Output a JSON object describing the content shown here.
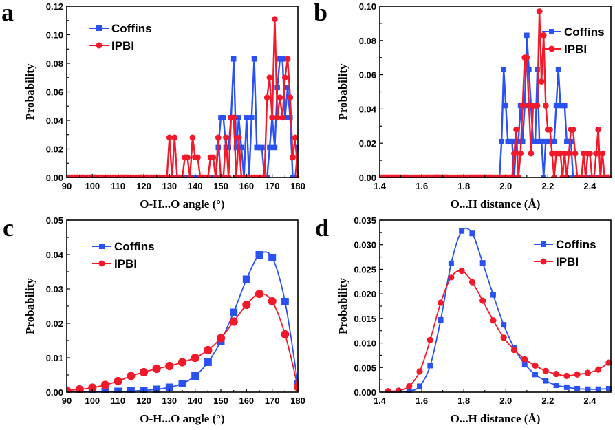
{
  "figure": {
    "panel_letters": [
      "a",
      "b",
      "c",
      "d"
    ]
  },
  "colors": {
    "coffins": "#2a52f2",
    "ipbi": "#f21a2a"
  },
  "chart_data": [
    {
      "id": "a",
      "type": "line",
      "title": "",
      "xlabel": "O-H...O angle (°)",
      "ylabel": "Probability",
      "xlim": [
        90,
        180
      ],
      "ylim": [
        0,
        0.12
      ],
      "xticks": [
        90,
        100,
        110,
        120,
        130,
        140,
        150,
        160,
        170,
        180
      ],
      "xtick_labels": [
        "90",
        "100",
        "110",
        "120",
        "130",
        "140",
        "150",
        "160",
        "170",
        "180"
      ],
      "yticks": [
        0,
        0.02,
        0.04,
        0.06,
        0.08,
        0.1,
        0.12
      ],
      "ytick_labels": [
        "0.00",
        "0.02",
        "0.04",
        "0.06",
        "0.08",
        "0.10",
        "0.12"
      ],
      "legend": {
        "placement": "top-left",
        "entries": [
          "Coffins",
          "IPBI"
        ]
      },
      "grid": false,
      "series": [
        {
          "name": "Coffins",
          "marker": "square",
          "color_key": "coffins",
          "x_start": 90,
          "x_step": 1,
          "values": [
            0,
            0,
            0,
            0,
            0,
            0,
            0,
            0,
            0,
            0,
            0,
            0,
            0,
            0,
            0,
            0,
            0,
            0,
            0,
            0,
            0,
            0,
            0,
            0,
            0,
            0,
            0,
            0,
            0,
            0,
            0,
            0,
            0,
            0,
            0,
            0,
            0,
            0,
            0,
            0,
            0,
            0,
            0,
            0,
            0,
            0,
            0,
            0,
            0,
            0,
            0,
            0,
            0,
            0,
            0,
            0,
            0,
            0,
            0,
            0.021,
            0.042,
            0.042,
            0.021,
            0.021,
            0.042,
            0.083,
            0.021,
            0.042,
            0.021,
            0,
            0.042,
            0,
            0.042,
            0.083,
            0.021,
            0.021,
            0.021,
            0,
            0,
            0.021,
            0.042,
            0.021,
            0.063,
            0.083,
            0.083,
            0.042,
            0.063,
            0.042,
            0,
            0,
            0.021
          ]
        },
        {
          "name": "IPBI",
          "marker": "circle",
          "color_key": "ipbi",
          "x_start": 90,
          "x_step": 1,
          "values": [
            0,
            0,
            0,
            0,
            0,
            0,
            0,
            0,
            0,
            0,
            0,
            0,
            0,
            0,
            0,
            0,
            0,
            0,
            0,
            0,
            0,
            0,
            0,
            0,
            0,
            0,
            0,
            0,
            0,
            0,
            0,
            0,
            0,
            0,
            0,
            0,
            0,
            0,
            0,
            0,
            0.028,
            0,
            0.028,
            0,
            0,
            0,
            0.014,
            0.014,
            0,
            0.028,
            0.014,
            0.014,
            0,
            0,
            0,
            0,
            0.014,
            0.014,
            0,
            0.028,
            0,
            0,
            0.028,
            0,
            0.042,
            0.042,
            0,
            0.028,
            0,
            0,
            0,
            0,
            0,
            0,
            0,
            0,
            0,
            0,
            0.056,
            0.07,
            0.042,
            0.111,
            0.042,
            0.056,
            0.042,
            0.07,
            0.083,
            0.056,
            0.014,
            0.028,
            0
          ]
        }
      ]
    },
    {
      "id": "b",
      "type": "line",
      "title": "",
      "xlabel": "O...H distance  (Å)",
      "ylabel": "Probability",
      "xlim": [
        1.4,
        2.5
      ],
      "ylim": [
        0,
        0.1
      ],
      "xticks": [
        1.4,
        1.6,
        1.8,
        2.0,
        2.2,
        2.4
      ],
      "xtick_labels": [
        "1.4",
        "1.6",
        "1.8",
        "2.0",
        "2.2",
        "2.4"
      ],
      "yticks": [
        0,
        0.02,
        0.04,
        0.06,
        0.08,
        0.1
      ],
      "ytick_labels": [
        "0.00",
        "0.02",
        "0.04",
        "0.06",
        "0.08",
        "0.10"
      ],
      "legend": {
        "placement": "top-right",
        "entries": [
          "Coffins",
          "IPBI"
        ]
      },
      "grid": false,
      "series": [
        {
          "name": "Coffins",
          "marker": "square",
          "color_key": "coffins",
          "x_start": 1.4,
          "x_step": 0.01,
          "values": [
            0,
            0,
            0,
            0,
            0,
            0,
            0,
            0,
            0,
            0,
            0,
            0,
            0,
            0,
            0,
            0,
            0,
            0,
            0,
            0,
            0,
            0,
            0,
            0,
            0,
            0,
            0,
            0,
            0,
            0,
            0,
            0,
            0,
            0,
            0,
            0,
            0,
            0,
            0,
            0,
            0,
            0,
            0,
            0,
            0,
            0,
            0,
            0,
            0,
            0,
            0,
            0,
            0,
            0,
            0,
            0,
            0,
            0,
            0.021,
            0.063,
            0.042,
            0.021,
            0.021,
            0.021,
            0,
            0.021,
            0.021,
            0.042,
            0.021,
            0.042,
            0.083,
            0.063,
            0.042,
            0.021,
            0.021,
            0.063,
            0.021,
            0.021,
            0,
            0.021,
            0.021,
            0.021,
            0.021,
            0.021,
            0.042,
            0.063,
            0.042,
            0.042,
            0.042,
            0.021,
            0.021,
            0.021,
            0,
            0,
            0,
            0,
            0,
            0,
            0,
            0,
            0,
            0,
            0,
            0,
            0,
            0,
            0,
            0,
            0,
            0,
            0,
            0
          ]
        },
        {
          "name": "IPBI",
          "marker": "circle",
          "color_key": "ipbi",
          "x_start": 1.4,
          "x_step": 0.01,
          "values": [
            0,
            0,
            0,
            0,
            0,
            0,
            0,
            0,
            0,
            0,
            0,
            0,
            0,
            0,
            0,
            0,
            0,
            0,
            0,
            0,
            0,
            0,
            0,
            0,
            0,
            0,
            0,
            0,
            0,
            0,
            0,
            0,
            0,
            0,
            0,
            0,
            0,
            0,
            0,
            0,
            0,
            0,
            0,
            0,
            0,
            0,
            0,
            0,
            0,
            0,
            0,
            0,
            0,
            0,
            0,
            0,
            0,
            0,
            0,
            0,
            0,
            0,
            0,
            0,
            0.014,
            0.028,
            0,
            0.014,
            0.042,
            0.07,
            0.07,
            0.042,
            0.014,
            0.042,
            0.042,
            0.042,
            0.097,
            0.056,
            0.083,
            0.042,
            0.028,
            0.028,
            0.014,
            0,
            0.014,
            0.014,
            0.014,
            0,
            0.014,
            0,
            0.014,
            0.028,
            0.028,
            0.014,
            0,
            0,
            0,
            0.014,
            0,
            0.014,
            0.014,
            0,
            0,
            0.014,
            0.028,
            0,
            0.014,
            0,
            0,
            0,
            0,
            0
          ]
        }
      ]
    },
    {
      "id": "c",
      "type": "line",
      "title": "",
      "xlabel": "O-H...O angle (°)",
      "ylabel": "Probability",
      "xlim": [
        90,
        180
      ],
      "ylim": [
        0,
        0.05
      ],
      "xticks": [
        90,
        100,
        110,
        120,
        130,
        140,
        150,
        160,
        170,
        180
      ],
      "xtick_labels": [
        "90",
        "100",
        "110",
        "120",
        "130",
        "140",
        "150",
        "160",
        "170",
        "180"
      ],
      "yticks": [
        0,
        0.01,
        0.02,
        0.03,
        0.04,
        0.05
      ],
      "ytick_labels": [
        "0.00",
        "0.01",
        "0.02",
        "0.03",
        "0.04",
        "0.05"
      ],
      "legend": {
        "placement": "top-left",
        "entries": [
          "Coffins",
          "IPBI"
        ]
      },
      "grid": false,
      "smooth": true,
      "series": [
        {
          "name": "Coffins",
          "marker": "square",
          "color_key": "coffins",
          "x": [
            90,
            95,
            100,
            105,
            110,
            115,
            120,
            125,
            130,
            135,
            140,
            145,
            150,
            155,
            160,
            165,
            170,
            175,
            180
          ],
          "values": [
            0.0001,
            0.0001,
            0.0001,
            0.0002,
            0.0002,
            0.0003,
            0.0005,
            0.0008,
            0.0014,
            0.0025,
            0.0047,
            0.0087,
            0.0148,
            0.0232,
            0.0328,
            0.0399,
            0.0391,
            0.0263,
            0.0024
          ]
        },
        {
          "name": "IPBI",
          "marker": "circle",
          "color_key": "ipbi",
          "x": [
            90,
            95,
            100,
            105,
            110,
            115,
            120,
            125,
            130,
            135,
            140,
            145,
            150,
            155,
            160,
            165,
            170,
            175,
            180
          ],
          "values": [
            0.0005,
            0.0008,
            0.0013,
            0.0021,
            0.0032,
            0.0047,
            0.0058,
            0.0068,
            0.0076,
            0.0087,
            0.01,
            0.0122,
            0.0157,
            0.0205,
            0.0254,
            0.0286,
            0.0264,
            0.0168,
            0.0015
          ]
        }
      ]
    },
    {
      "id": "d",
      "type": "line",
      "title": "",
      "xlabel": "O...H distance  (Å)",
      "ylabel": "Probability",
      "xlim": [
        1.4,
        2.5
      ],
      "ylim": [
        0,
        0.035
      ],
      "xticks": [
        1.4,
        1.6,
        1.8,
        2.0,
        2.2,
        2.4
      ],
      "xtick_labels": [
        "1.4",
        "1.6",
        "1.8",
        "2.0",
        "2.2",
        "2.4"
      ],
      "yticks": [
        0,
        0.005,
        0.01,
        0.015,
        0.02,
        0.025,
        0.03,
        0.035
      ],
      "ytick_labels": [
        "0.000",
        "0.005",
        "0.010",
        "0.015",
        "0.020",
        "0.025",
        "0.030",
        "0.035"
      ],
      "legend": {
        "placement": "top-right",
        "entries": [
          "Coffins",
          "IPBI"
        ]
      },
      "grid": false,
      "smooth": true,
      "series": [
        {
          "name": "Coffins",
          "marker": "square",
          "color_key": "coffins",
          "x": [
            1.44,
            1.49,
            1.54,
            1.59,
            1.64,
            1.69,
            1.74,
            1.79,
            1.84,
            1.89,
            1.94,
            1.99,
            2.04,
            2.09,
            2.14,
            2.19,
            2.24,
            2.29,
            2.34,
            2.39,
            2.44,
            2.49
          ],
          "values": [
            0.0,
            0.0,
            0.0002,
            0.0012,
            0.0054,
            0.0147,
            0.0262,
            0.0328,
            0.0323,
            0.0263,
            0.0198,
            0.0137,
            0.009,
            0.0057,
            0.0036,
            0.0023,
            0.0014,
            0.001,
            0.0007,
            0.0006,
            0.0006,
            0.0007
          ]
        },
        {
          "name": "IPBI",
          "marker": "circle",
          "color_key": "ipbi",
          "x": [
            1.44,
            1.49,
            1.54,
            1.59,
            1.64,
            1.69,
            1.74,
            1.79,
            1.84,
            1.89,
            1.94,
            1.99,
            2.04,
            2.09,
            2.14,
            2.19,
            2.24,
            2.29,
            2.34,
            2.39,
            2.44,
            2.49
          ],
          "values": [
            0.0002,
            0.0003,
            0.0012,
            0.0042,
            0.0106,
            0.0182,
            0.0234,
            0.0247,
            0.0224,
            0.0186,
            0.0146,
            0.0111,
            0.0086,
            0.0067,
            0.0054,
            0.0043,
            0.0037,
            0.0033,
            0.0036,
            0.0039,
            0.0046,
            0.006
          ]
        }
      ]
    }
  ]
}
